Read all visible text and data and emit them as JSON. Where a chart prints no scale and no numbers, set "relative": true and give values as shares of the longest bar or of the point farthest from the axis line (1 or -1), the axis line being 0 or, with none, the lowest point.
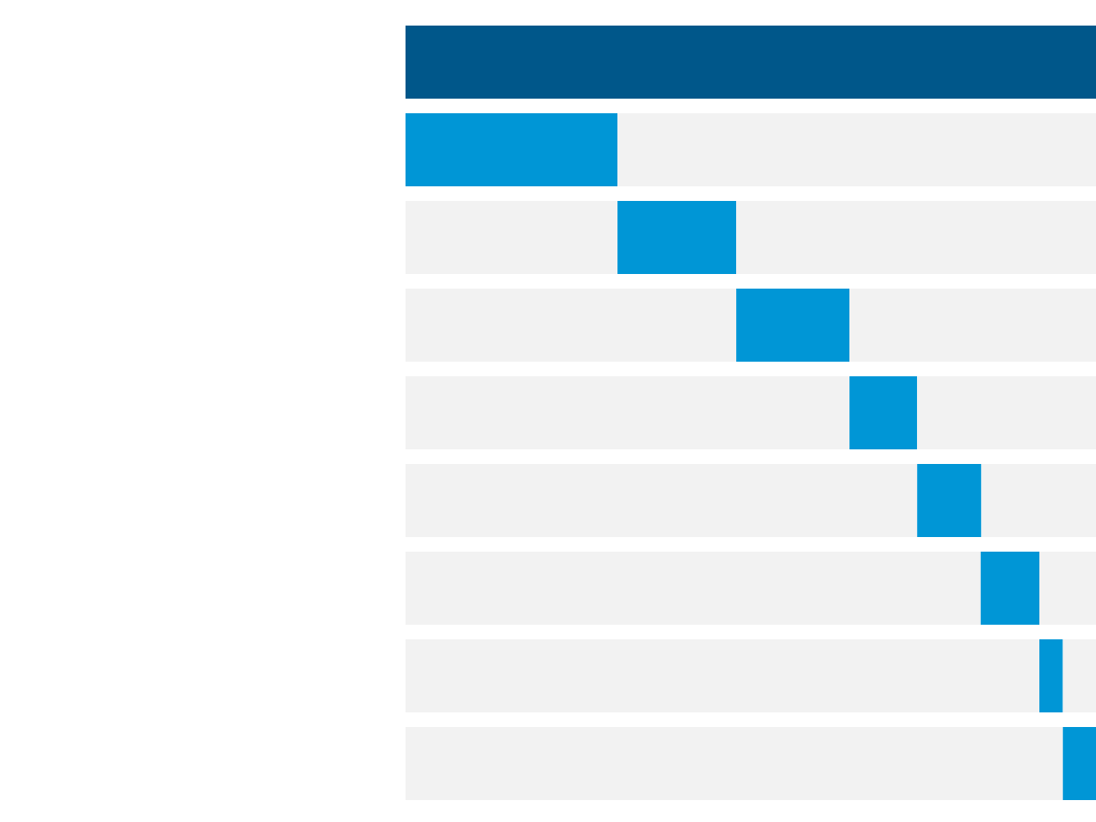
{
  "chart_data": {
    "type": "bar",
    "orientation": "horizontal",
    "relative": true,
    "stacked": true,
    "categories": [
      null,
      null,
      null,
      null,
      null,
      null,
      null,
      null,
      null
    ],
    "series": [
      {
        "color": "#f2f2f2",
        "values": [
          null,
          null,
          0.307,
          0.479,
          0.643,
          0.741,
          0.833,
          0.918,
          0.952
        ]
      },
      {
        "colors": [
          "#00578a",
          "#0096d6",
          "#0096d6",
          "#0096d6",
          "#0096d6",
          "#0096d6",
          "#0096d6",
          "#0096d6",
          "#0096d6"
        ],
        "values": [
          1,
          0.307,
          0.172,
          0.164,
          0.098,
          0.093,
          0.085,
          0.034,
          0.048
        ]
      },
      {
        "color": "#f2f2f2",
        "values": [
          null,
          0.693,
          0.521,
          0.357,
          0.259,
          0.166,
          0.082,
          0.048,
          null
        ]
      }
    ]
  }
}
